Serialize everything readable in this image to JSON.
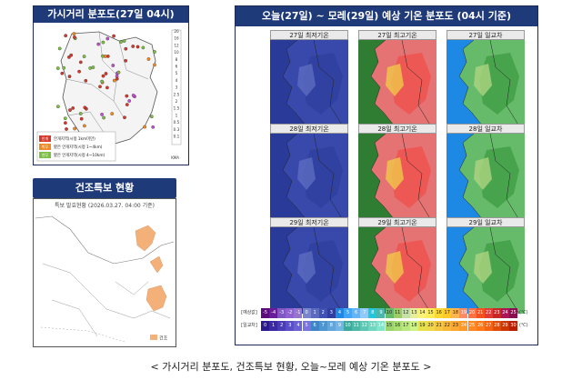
{
  "visibility": {
    "title": "가시거리 분포도(27일 04시)",
    "scale_labels": [
      "20",
      "16",
      "12",
      "10",
      "8",
      "6",
      "5",
      "4",
      "3",
      "2.5",
      "2",
      "1.5",
      "1",
      "0.5",
      "0.3",
      "0.1"
    ],
    "legend": [
      {
        "tag": "안개",
        "text": "안개지역(시정 1km미만)",
        "color": "#d9372b"
      },
      {
        "tag": "박무",
        "text": "옅은 안개지역(시정 1~4km)",
        "color": "#f08a24"
      },
      {
        "tag": "연무",
        "text": "옅은 안개지역(시정 4~10km)",
        "color": "#7bc043"
      }
    ],
    "corner": "KMA",
    "colors": {
      "fog": "#d9372b",
      "mist": "#f08a24",
      "haze": "#7bc043",
      "other": "#c84bd6"
    }
  },
  "dry": {
    "title": "건조특보 현황",
    "status": "특보 발효현황 (2026.03.27. 04:00 기준)",
    "legend_label": "건조",
    "color": "#f3b079"
  },
  "forecast": {
    "title": "오늘(27일) ~ 모레(29일) 예상 기온 분포도 (04시 기준)",
    "rows": [
      {
        "labels": [
          "27일 최저기온",
          "27일 최고기온",
          "27일 일교차"
        ]
      },
      {
        "labels": [
          "28일 최저기온",
          "28일 최고기온",
          "28일 일교차"
        ]
      },
      {
        "labels": [
          "29일 최저기온",
          "29일 최고기온",
          "29일 일교차"
        ]
      }
    ],
    "legend_temp_title": "[예상값]",
    "legend_range_title": "[일교차]",
    "unit": "(℃)",
    "temp_values": [
      "-5",
      "-4",
      "-3",
      "-2",
      "-1",
      "0",
      "1",
      "2",
      "3",
      "4",
      "5",
      "6",
      "7",
      "8",
      "9",
      "10",
      "11",
      "12",
      "13",
      "14",
      "15",
      "16",
      "17",
      "18",
      "19",
      "20",
      "21",
      "22",
      "23",
      "24",
      "25"
    ],
    "range_values": [
      "0",
      "1",
      "2",
      "3",
      "4",
      "5",
      "6",
      "7",
      "8",
      "9",
      "10",
      "11",
      "12",
      "13",
      "14",
      "15",
      "16",
      "17",
      "18",
      "19",
      "20",
      "21",
      "22",
      "23",
      "24",
      "25",
      "26",
      "27",
      "28",
      "29",
      "30"
    ]
  },
  "caption": "< 가시거리 분포도, 건조특보 현황, 오늘~모레 예상 기온 분포도 >"
}
